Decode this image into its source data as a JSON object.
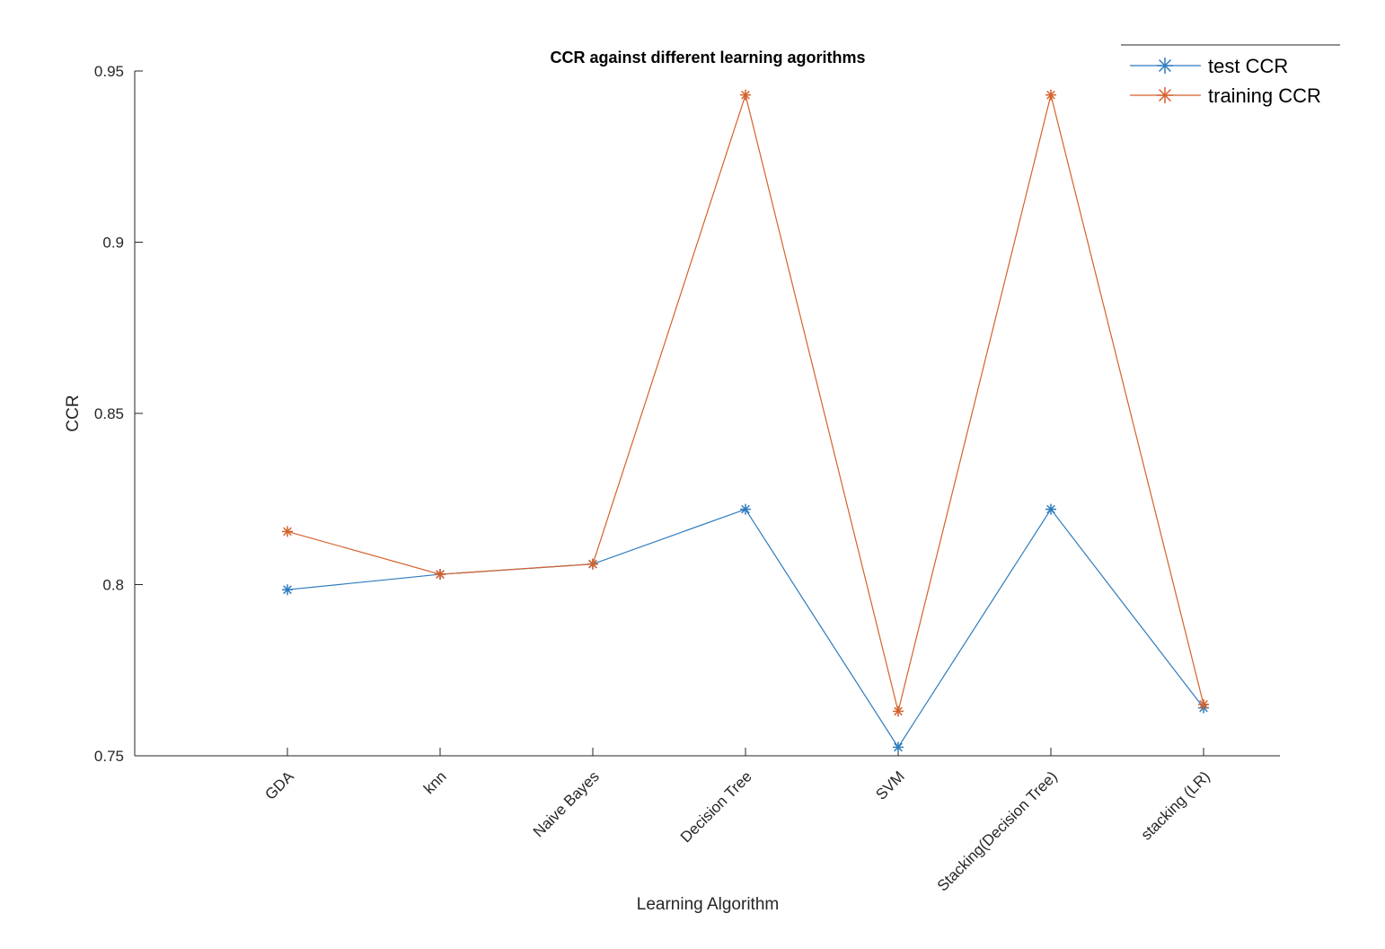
{
  "chart_data": {
    "type": "line",
    "title": "CCR against different learning agorithms",
    "xlabel": "Learning Algorithm",
    "ylabel": "CCR",
    "categories": [
      "GDA",
      "knn",
      "Naive Bayes",
      "Decision Tree",
      "SVM",
      "Stacking(Decision Tree)",
      "stacking (LR)"
    ],
    "ylim": [
      0.75,
      0.95
    ],
    "yticks": [
      0.75,
      0.8,
      0.85,
      0.9,
      0.95
    ],
    "ytick_labels": [
      "0.75",
      "0.8",
      "0.85",
      "0.9",
      "0.95"
    ],
    "grid": false,
    "legend_position": "top-right",
    "series": [
      {
        "name": "test CCR",
        "color": "#2f7bbf",
        "marker": "asterisk",
        "values": [
          0.7985,
          0.803,
          0.806,
          0.822,
          0.7525,
          0.822,
          0.764
        ]
      },
      {
        "name": "training CCR",
        "color": "#d4612c",
        "marker": "asterisk",
        "values": [
          0.8155,
          0.803,
          0.806,
          0.943,
          0.763,
          0.943,
          0.765
        ]
      }
    ]
  }
}
